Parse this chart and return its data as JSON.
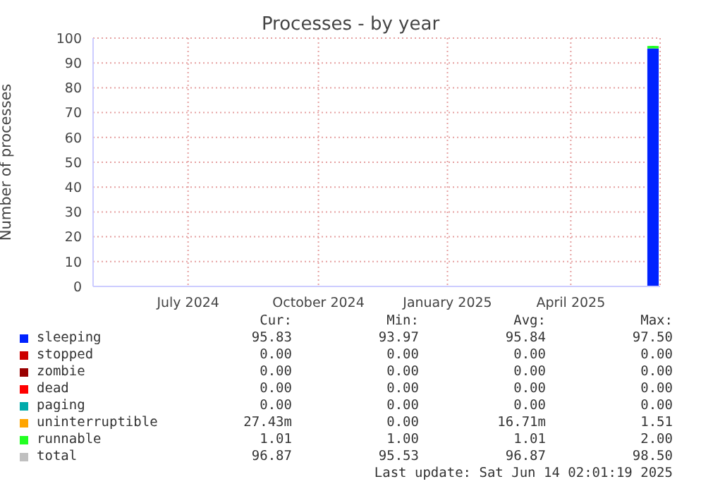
{
  "chart_data": {
    "type": "area",
    "title": "Processes - by year",
    "ylabel": "Number of processes",
    "x": [
      "2025-06-05",
      "2025-06-09",
      "2025-06-13"
    ],
    "xlim": [
      "2024-05-10",
      "2025-06-14"
    ],
    "xticks": [
      {
        "value": "2024-07-16",
        "label": "July 2024"
      },
      {
        "value": "2024-10-16",
        "label": "October 2024"
      },
      {
        "value": "2025-01-15",
        "label": "January 2025"
      },
      {
        "value": "2025-04-12",
        "label": "April 2025"
      }
    ],
    "ylim": [
      0,
      100
    ],
    "yticks": [
      0,
      10,
      20,
      30,
      40,
      50,
      60,
      70,
      80,
      90,
      100
    ],
    "stacked": true,
    "grid": true,
    "legend": "bottom",
    "series": [
      {
        "name": "sleeping",
        "color": "#0022ff",
        "values": [
          95.8,
          95.9,
          95.8
        ]
      },
      {
        "name": "stopped",
        "color": "#cc0000",
        "values": [
          null,
          null,
          null
        ]
      },
      {
        "name": "zombie",
        "color": "#990000",
        "values": [
          null,
          null,
          null
        ]
      },
      {
        "name": "dead",
        "color": "#ff0000",
        "values": [
          null,
          null,
          null
        ]
      },
      {
        "name": "paging",
        "color": "#00aaaa",
        "values": [
          null,
          null,
          null
        ]
      },
      {
        "name": "uninterruptible",
        "color": "#ffa500",
        "values": [
          null,
          null,
          null
        ]
      },
      {
        "name": "runnable",
        "color": "#22ff22",
        "values": [
          1.0,
          1.0,
          1.0
        ]
      },
      {
        "name": "total",
        "color": "#c0c0c0",
        "values": [
          null,
          null,
          null
        ]
      }
    ],
    "annotations": [
      "Cur:",
      "Min:",
      "Avg:",
      "Max:",
      "95.83",
      "93.97",
      "95.84",
      "97.50",
      "0.00",
      "0.00",
      "0.00",
      "0.00",
      "0.00",
      "0.00",
      "0.00",
      "0.00",
      "0.00",
      "0.00",
      "0.00",
      "0.00",
      "0.00",
      "0.00",
      "0.00",
      "0.00",
      "27.43m",
      "0.00",
      "16.71m",
      "1.51",
      "1.01",
      "1.00",
      "1.01",
      "2.00",
      "96.87",
      "95.53",
      "96.87",
      "98.50",
      "Last update: Sat Jun 14 02:01:19 2025"
    ]
  }
}
